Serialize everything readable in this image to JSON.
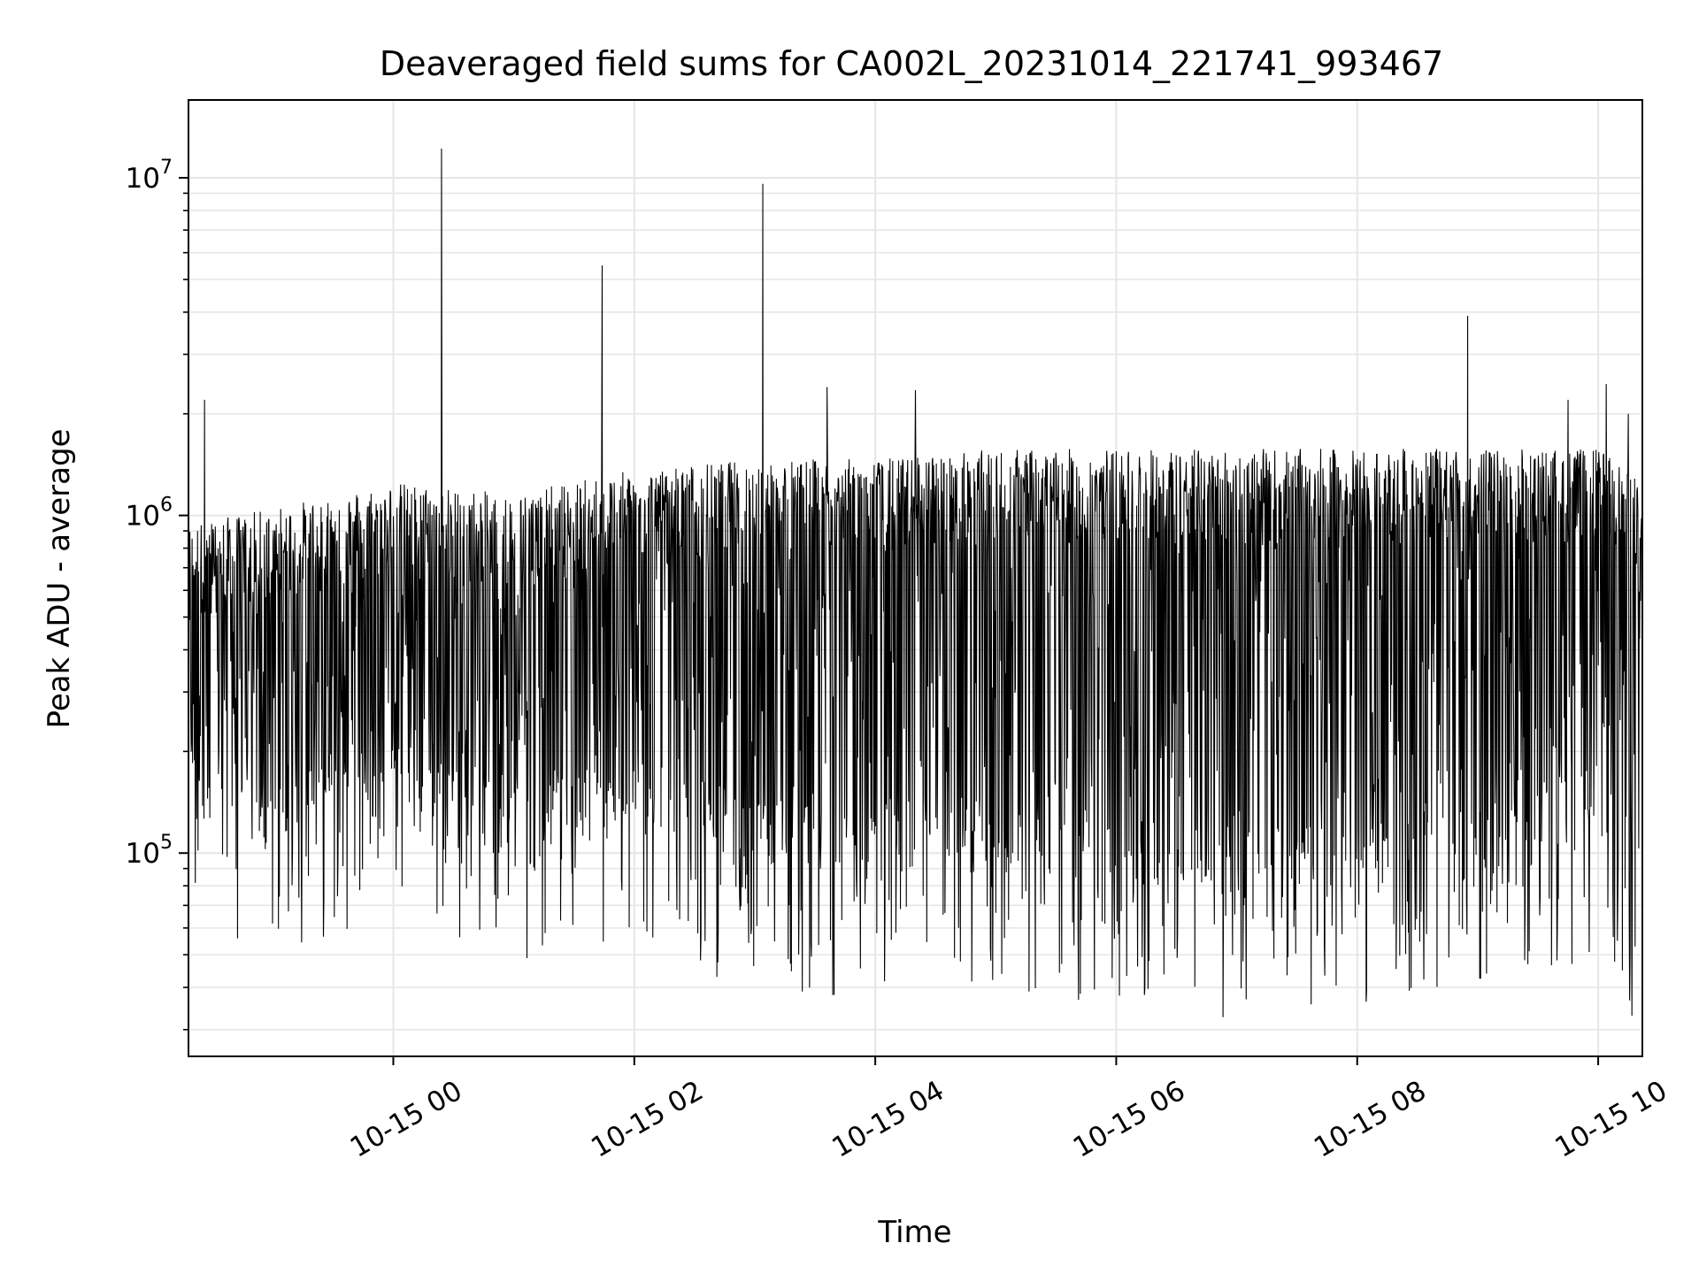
{
  "chart_data": {
    "type": "line",
    "title": "Deaveraged field sums for CA002L_20231014_221741_993467",
    "xlabel": "Time",
    "ylabel": "Peak ADU - average",
    "yscale": "log",
    "xlim": [
      "2023-10-14 22:18",
      "2023-10-15 10:22"
    ],
    "ylim": [
      25000,
      17000000
    ],
    "grid": true,
    "colors": {
      "line": "#000000",
      "grid": "#e6e6e6"
    },
    "x_ticks": [
      {
        "t": "2023-10-15 00:00",
        "label": "10-15 00"
      },
      {
        "t": "2023-10-15 02:00",
        "label": "10-15 02"
      },
      {
        "t": "2023-10-15 04:00",
        "label": "10-15 04"
      },
      {
        "t": "2023-10-15 06:00",
        "label": "10-15 06"
      },
      {
        "t": "2023-10-15 08:00",
        "label": "10-15 08"
      },
      {
        "t": "2023-10-15 10:00",
        "label": "10-15 10"
      }
    ],
    "y_ticks": [
      {
        "value": 100000,
        "base": "10",
        "exp": "5"
      },
      {
        "value": 1000000,
        "base": "10",
        "exp": "6"
      },
      {
        "value": 10000000,
        "base": "10",
        "exp": "7"
      }
    ],
    "series": [
      {
        "color": "#000000",
        "noise_model": "dense per-frame samples fluctuating roughly between 4e4 and 1.6e6 around an upper envelope",
        "envelope": [
          {
            "t": "2023-10-14 22:18",
            "upper": 900000,
            "lower": 70000
          },
          {
            "t": "2023-10-14 23:00",
            "upper": 1000000,
            "lower": 60000
          },
          {
            "t": "2023-10-15 00:00",
            "upper": 1200000,
            "lower": 80000
          },
          {
            "t": "2023-10-15 01:00",
            "upper": 1100000,
            "lower": 60000
          },
          {
            "t": "2023-10-15 02:00",
            "upper": 1300000,
            "lower": 60000
          },
          {
            "t": "2023-10-15 03:00",
            "upper": 1400000,
            "lower": 50000
          },
          {
            "t": "2023-10-15 04:00",
            "upper": 1400000,
            "lower": 45000
          },
          {
            "t": "2023-10-15 05:00",
            "upper": 1500000,
            "lower": 45000
          },
          {
            "t": "2023-10-15 06:00",
            "upper": 1500000,
            "lower": 42000
          },
          {
            "t": "2023-10-15 07:00",
            "upper": 1500000,
            "lower": 40000
          },
          {
            "t": "2023-10-15 08:00",
            "upper": 1500000,
            "lower": 42000
          },
          {
            "t": "2023-10-15 09:00",
            "upper": 1500000,
            "lower": 45000
          },
          {
            "t": "2023-10-15 10:00",
            "upper": 1500000,
            "lower": 60000
          },
          {
            "t": "2023-10-15 10:22",
            "upper": 1200000,
            "lower": 33000
          }
        ],
        "spikes": [
          {
            "t": "2023-10-14 22:26",
            "value": 2200000
          },
          {
            "t": "2023-10-15 00:24",
            "value": 12200000
          },
          {
            "t": "2023-10-15 01:44",
            "value": 5500000
          },
          {
            "t": "2023-10-15 03:04",
            "value": 9600000
          },
          {
            "t": "2023-10-15 03:36",
            "value": 2400000
          },
          {
            "t": "2023-10-15 04:20",
            "value": 2350000
          },
          {
            "t": "2023-10-15 08:55",
            "value": 3900000
          },
          {
            "t": "2023-10-15 09:45",
            "value": 2200000
          },
          {
            "t": "2023-10-15 10:04",
            "value": 2450000
          },
          {
            "t": "2023-10-15 10:15",
            "value": 2000000
          }
        ]
      }
    ]
  }
}
